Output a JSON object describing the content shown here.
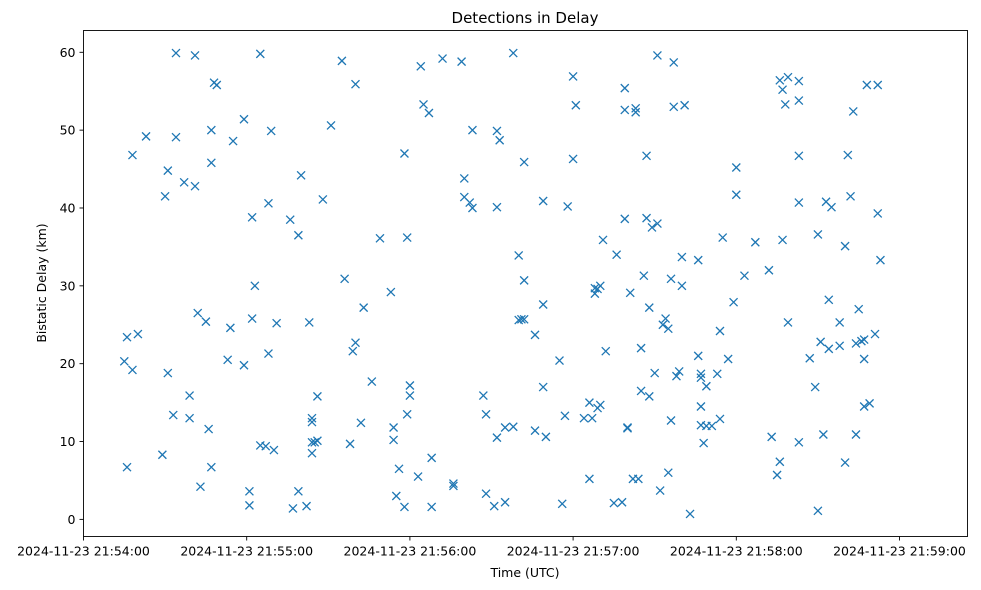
{
  "chart_data": {
    "type": "scatter",
    "title": "Detections in Delay",
    "xlabel": "Time (UTC)",
    "ylabel": "Bistatic Delay (km)",
    "x_ticks": [
      "2024-11-23 21:54:00",
      "2024-11-23 21:55:00",
      "2024-11-23 21:56:00",
      "2024-11-23 21:57:00",
      "2024-11-23 21:58:00",
      "2024-11-23 21:59:00"
    ],
    "x_tick_seconds": [
      0,
      60,
      120,
      180,
      240,
      300
    ],
    "y_ticks": [
      0,
      10,
      20,
      30,
      40,
      50,
      60
    ],
    "xlim_seconds": [
      0,
      325
    ],
    "ylim": [
      -2.2,
      62.8
    ],
    "marker": "x",
    "color": "#1f77b4",
    "grid": false,
    "points": [
      [
        15,
        20.3
      ],
      [
        16,
        23.4
      ],
      [
        16,
        6.7
      ],
      [
        18,
        46.8
      ],
      [
        18,
        19.2
      ],
      [
        20,
        23.8
      ],
      [
        23,
        49.2
      ],
      [
        29,
        8.3
      ],
      [
        30,
        41.5
      ],
      [
        31,
        44.8
      ],
      [
        31,
        18.8
      ],
      [
        33,
        13.4
      ],
      [
        34,
        49.1
      ],
      [
        34,
        59.9
      ],
      [
        37,
        43.3
      ],
      [
        39,
        15.9
      ],
      [
        39,
        13.0
      ],
      [
        41,
        42.8
      ],
      [
        41,
        59.6
      ],
      [
        42,
        26.5
      ],
      [
        43,
        4.2
      ],
      [
        45,
        25.4
      ],
      [
        46,
        11.6
      ],
      [
        47,
        45.8
      ],
      [
        47,
        50.0
      ],
      [
        47,
        6.7
      ],
      [
        48,
        56.1
      ],
      [
        49,
        55.8
      ],
      [
        53,
        20.5
      ],
      [
        54,
        24.6
      ],
      [
        55,
        48.6
      ],
      [
        59,
        51.4
      ],
      [
        59,
        19.8
      ],
      [
        61,
        3.6
      ],
      [
        61,
        1.8
      ],
      [
        62,
        38.8
      ],
      [
        62,
        25.8
      ],
      [
        63,
        30.0
      ],
      [
        65,
        59.8
      ],
      [
        65,
        9.5
      ],
      [
        67,
        9.4
      ],
      [
        68,
        40.6
      ],
      [
        68,
        21.3
      ],
      [
        69,
        49.9
      ],
      [
        70,
        8.9
      ],
      [
        71,
        25.2
      ],
      [
        76,
        38.5
      ],
      [
        77,
        1.4
      ],
      [
        79,
        36.5
      ],
      [
        79,
        3.6
      ],
      [
        80,
        44.2
      ],
      [
        82,
        1.7
      ],
      [
        83,
        25.3
      ],
      [
        84,
        8.5
      ],
      [
        84,
        9.9
      ],
      [
        84,
        12.5
      ],
      [
        84,
        13.0
      ],
      [
        85,
        9.9
      ],
      [
        86,
        10.1
      ],
      [
        86,
        15.8
      ],
      [
        88,
        41.1
      ],
      [
        91,
        50.6
      ],
      [
        95,
        58.9
      ],
      [
        96,
        30.9
      ],
      [
        98,
        9.7
      ],
      [
        99,
        21.6
      ],
      [
        100,
        22.7
      ],
      [
        100,
        55.9
      ],
      [
        102,
        12.4
      ],
      [
        103,
        27.2
      ],
      [
        106,
        17.7
      ],
      [
        109,
        36.1
      ],
      [
        113,
        29.2
      ],
      [
        114,
        11.8
      ],
      [
        114,
        10.2
      ],
      [
        115,
        3.0
      ],
      [
        116,
        6.5
      ],
      [
        118,
        47.0
      ],
      [
        118,
        1.6
      ],
      [
        119,
        36.2
      ],
      [
        119,
        13.5
      ],
      [
        120,
        17.2
      ],
      [
        120,
        15.9
      ],
      [
        123,
        5.5
      ],
      [
        124,
        58.2
      ],
      [
        125,
        53.3
      ],
      [
        127,
        52.2
      ],
      [
        128,
        7.9
      ],
      [
        128,
        1.6
      ],
      [
        132,
        59.2
      ],
      [
        136,
        4.6
      ],
      [
        136,
        4.3
      ],
      [
        139,
        58.8
      ],
      [
        140,
        43.8
      ],
      [
        140,
        41.4
      ],
      [
        142,
        40.7
      ],
      [
        143,
        40.0
      ],
      [
        143,
        50.0
      ],
      [
        147,
        15.9
      ],
      [
        148,
        13.5
      ],
      [
        148,
        3.3
      ],
      [
        151,
        1.7
      ],
      [
        152,
        49.9
      ],
      [
        152,
        40.1
      ],
      [
        152,
        10.5
      ],
      [
        153,
        48.7
      ],
      [
        155,
        11.8
      ],
      [
        155,
        2.2
      ],
      [
        158,
        11.9
      ],
      [
        158,
        59.9
      ],
      [
        160,
        33.9
      ],
      [
        160,
        25.6
      ],
      [
        161,
        25.7
      ],
      [
        162,
        30.7
      ],
      [
        162,
        25.7
      ],
      [
        162,
        45.9
      ],
      [
        166,
        23.7
      ],
      [
        166,
        11.4
      ],
      [
        169,
        40.9
      ],
      [
        169,
        17.0
      ],
      [
        169,
        27.6
      ],
      [
        170,
        10.6
      ],
      [
        175,
        20.4
      ],
      [
        176,
        2.0
      ],
      [
        177,
        13.3
      ],
      [
        178,
        40.2
      ],
      [
        180,
        56.9
      ],
      [
        180,
        46.3
      ],
      [
        181,
        53.2
      ],
      [
        184,
        13.0
      ],
      [
        186,
        15.0
      ],
      [
        186,
        5.2
      ],
      [
        187,
        13.0
      ],
      [
        188,
        29.7
      ],
      [
        188,
        29.0
      ],
      [
        189,
        29.6
      ],
      [
        189,
        14.3
      ],
      [
        190,
        30.0
      ],
      [
        190,
        14.7
      ],
      [
        191,
        35.9
      ],
      [
        192,
        21.6
      ],
      [
        195,
        2.1
      ],
      [
        196,
        34.0
      ],
      [
        198,
        2.2
      ],
      [
        199,
        52.6
      ],
      [
        199,
        55.4
      ],
      [
        199,
        38.6
      ],
      [
        200,
        11.8
      ],
      [
        200,
        11.7
      ],
      [
        201,
        29.1
      ],
      [
        202,
        5.2
      ],
      [
        203,
        52.8
      ],
      [
        203,
        52.3
      ],
      [
        204,
        5.2
      ],
      [
        205,
        16.5
      ],
      [
        205,
        22.0
      ],
      [
        206,
        31.3
      ],
      [
        207,
        46.7
      ],
      [
        207,
        38.7
      ],
      [
        208,
        27.2
      ],
      [
        208,
        15.8
      ],
      [
        209,
        37.5
      ],
      [
        210,
        18.8
      ],
      [
        211,
        59.6
      ],
      [
        211,
        38.0
      ],
      [
        212,
        3.7
      ],
      [
        213,
        25.0
      ],
      [
        214,
        25.8
      ],
      [
        215,
        24.5
      ],
      [
        215,
        6.0
      ],
      [
        216,
        12.7
      ],
      [
        216,
        30.9
      ],
      [
        217,
        53.0
      ],
      [
        217,
        58.7
      ],
      [
        218,
        18.4
      ],
      [
        219,
        19.0
      ],
      [
        220,
        33.7
      ],
      [
        220,
        30.0
      ],
      [
        221,
        53.2
      ],
      [
        223,
        0.7
      ],
      [
        226,
        21.0
      ],
      [
        226,
        33.3
      ],
      [
        227,
        18.2
      ],
      [
        227,
        18.7
      ],
      [
        227,
        14.5
      ],
      [
        227,
        12.1
      ],
      [
        228,
        9.8
      ],
      [
        229,
        17.1
      ],
      [
        229,
        12.0
      ],
      [
        231,
        12.0
      ],
      [
        233,
        18.7
      ],
      [
        234,
        24.2
      ],
      [
        234,
        12.9
      ],
      [
        235,
        36.2
      ],
      [
        237,
        20.6
      ],
      [
        239,
        27.9
      ],
      [
        240,
        41.7
      ],
      [
        240,
        45.2
      ],
      [
        243,
        31.3
      ],
      [
        247,
        35.6
      ],
      [
        252,
        32.0
      ],
      [
        253,
        10.6
      ],
      [
        255,
        5.7
      ],
      [
        256,
        56.4
      ],
      [
        256,
        7.4
      ],
      [
        257,
        55.2
      ],
      [
        257,
        35.9
      ],
      [
        258,
        53.3
      ],
      [
        259,
        25.3
      ],
      [
        259,
        56.8
      ],
      [
        263,
        56.3
      ],
      [
        263,
        53.8
      ],
      [
        263,
        46.7
      ],
      [
        263,
        40.7
      ],
      [
        263,
        9.9
      ],
      [
        267,
        20.7
      ],
      [
        269,
        17.0
      ],
      [
        270,
        36.6
      ],
      [
        270,
        1.1
      ],
      [
        271,
        22.8
      ],
      [
        272,
        10.9
      ],
      [
        273,
        40.8
      ],
      [
        274,
        28.2
      ],
      [
        274,
        21.9
      ],
      [
        275,
        40.1
      ],
      [
        278,
        25.3
      ],
      [
        278,
        22.3
      ],
      [
        280,
        35.1
      ],
      [
        280,
        7.3
      ],
      [
        281,
        46.8
      ],
      [
        282,
        41.5
      ],
      [
        283,
        52.4
      ],
      [
        284,
        10.9
      ],
      [
        284,
        22.6
      ],
      [
        285,
        27.0
      ],
      [
        286,
        22.9
      ],
      [
        287,
        20.6
      ],
      [
        287,
        23.1
      ],
      [
        287,
        14.5
      ],
      [
        288,
        55.8
      ],
      [
        289,
        14.9
      ],
      [
        291,
        23.8
      ],
      [
        292,
        55.8
      ],
      [
        292,
        39.3
      ],
      [
        293,
        33.3
      ]
    ]
  }
}
